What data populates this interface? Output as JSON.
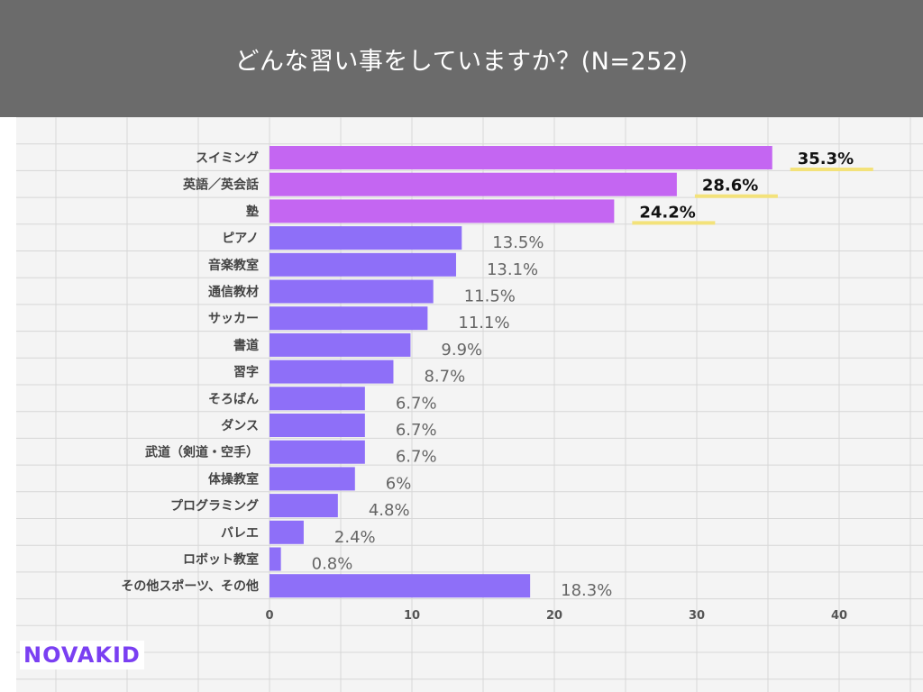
{
  "header": {
    "title": "どんな習い事をしていますか？(N=252)"
  },
  "logo": {
    "text": "NOVAKID"
  },
  "colors": {
    "top_bar": "#c466f2",
    "bar": "#8e6ff8",
    "highlight": "#f3e27a",
    "header_bg": "#6b6b6b",
    "plot_bg": "#f4f4f4",
    "grid": "#d7d7d7"
  },
  "chart_data": {
    "type": "bar",
    "orientation": "horizontal",
    "title": "どんな習い事をしていますか？(N=252)",
    "categories": [
      "スイミング",
      "英語／英会話",
      "塾",
      "ピアノ",
      "音楽教室",
      "通信教材",
      "サッカー",
      "書道",
      "習字",
      "そろばん",
      "ダンス",
      "武道（剣道・空手）",
      "体操教室",
      "プログラミング",
      "バレエ",
      "ロボット教室",
      "その他スポーツ、その他"
    ],
    "values": [
      35.3,
      28.6,
      24.2,
      13.5,
      13.1,
      11.5,
      11.1,
      9.9,
      8.7,
      6.7,
      6.7,
      6.7,
      6,
      4.8,
      2.4,
      0.8,
      18.3
    ],
    "value_labels": [
      "35.3%",
      "28.6%",
      "24.2%",
      "13.5%",
      "13.1%",
      "11.5%",
      "11.1%",
      "9.9%",
      "8.7%",
      "6.7%",
      "6.7%",
      "6.7%",
      "6%",
      "4.8%",
      "2.4%",
      "0.8%",
      "18.3%"
    ],
    "highlighted_top": 3,
    "xlim": [
      0,
      45
    ],
    "xticks": [
      0,
      10,
      20,
      30,
      40
    ],
    "grid": true,
    "xlabel": "",
    "ylabel": ""
  }
}
